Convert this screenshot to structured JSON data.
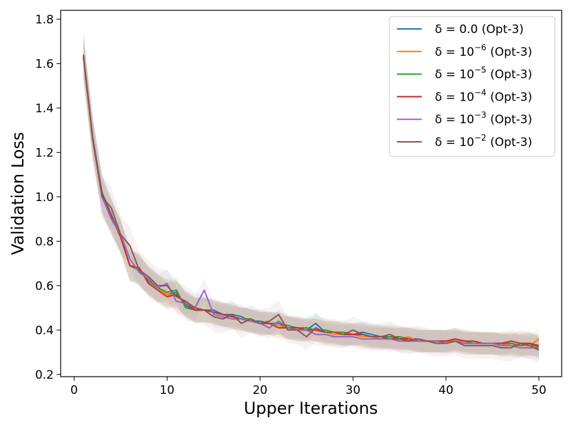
{
  "chart_data": {
    "type": "line",
    "title": "",
    "xlabel": "Upper Iterations",
    "ylabel": "Validation Loss",
    "xlim": [
      -1.45,
      52.45
    ],
    "ylim": [
      0.19,
      1.84
    ],
    "xticks": [
      0,
      10,
      20,
      30,
      40,
      50
    ],
    "yticks": [
      0.2,
      0.4,
      0.6,
      0.8,
      1.0,
      1.2,
      1.4,
      1.6,
      1.8
    ],
    "ytick_labels": [
      "0.2",
      "0.4",
      "0.6",
      "0.8",
      "1.0",
      "1.2",
      "1.4",
      "1.6",
      "1.8"
    ],
    "legend_position": "upper right",
    "x": [
      1,
      2,
      3,
      4,
      5,
      6,
      7,
      8,
      9,
      10,
      11,
      12,
      13,
      14,
      15,
      16,
      17,
      18,
      19,
      20,
      21,
      22,
      23,
      24,
      25,
      26,
      27,
      28,
      29,
      30,
      31,
      32,
      33,
      34,
      35,
      36,
      37,
      38,
      39,
      40,
      41,
      42,
      43,
      44,
      45,
      46,
      47,
      48,
      49,
      50
    ],
    "series": [
      {
        "name": "δ = 0.0 (Opt-3)",
        "label_main": "δ = 0.0 (Opt-3)",
        "color": "#1f77b4",
        "values": [
          1.64,
          1.27,
          1.02,
          0.92,
          0.82,
          0.69,
          0.67,
          0.62,
          0.59,
          0.56,
          0.57,
          0.51,
          0.49,
          0.49,
          0.49,
          0.47,
          0.47,
          0.46,
          0.44,
          0.44,
          0.43,
          0.43,
          0.41,
          0.4,
          0.4,
          0.43,
          0.39,
          0.39,
          0.38,
          0.38,
          0.39,
          0.38,
          0.37,
          0.37,
          0.36,
          0.36,
          0.36,
          0.35,
          0.35,
          0.35,
          0.35,
          0.34,
          0.34,
          0.34,
          0.34,
          0.33,
          0.34,
          0.33,
          0.33,
          0.33
        ],
        "band": 0.05
      },
      {
        "name": "δ = 10^−6 (Opt-3)",
        "label_main": "δ = 10",
        "label_exp": "−6",
        "label_tail": " (Opt-3)",
        "color": "#ff7f0e",
        "values": [
          1.63,
          1.26,
          1.01,
          0.91,
          0.82,
          0.69,
          0.68,
          0.62,
          0.59,
          0.56,
          0.56,
          0.52,
          0.49,
          0.49,
          0.48,
          0.47,
          0.46,
          0.45,
          0.44,
          0.43,
          0.43,
          0.42,
          0.41,
          0.4,
          0.4,
          0.4,
          0.39,
          0.38,
          0.38,
          0.38,
          0.37,
          0.37,
          0.36,
          0.36,
          0.36,
          0.37,
          0.35,
          0.35,
          0.35,
          0.35,
          0.35,
          0.35,
          0.34,
          0.34,
          0.34,
          0.34,
          0.33,
          0.33,
          0.33,
          0.36
        ],
        "band": 0.05
      },
      {
        "name": "δ = 10^−5 (Opt-3)",
        "label_main": "δ = 10",
        "label_exp": "−5",
        "label_tail": " (Opt-3)",
        "color": "#2ca02c",
        "values": [
          1.63,
          1.27,
          1.01,
          0.91,
          0.82,
          0.69,
          0.67,
          0.62,
          0.59,
          0.57,
          0.58,
          0.5,
          0.49,
          0.49,
          0.48,
          0.47,
          0.46,
          0.45,
          0.45,
          0.43,
          0.43,
          0.43,
          0.42,
          0.41,
          0.41,
          0.4,
          0.4,
          0.39,
          0.39,
          0.38,
          0.38,
          0.37,
          0.37,
          0.37,
          0.37,
          0.36,
          0.35,
          0.35,
          0.35,
          0.35,
          0.36,
          0.35,
          0.34,
          0.34,
          0.34,
          0.34,
          0.34,
          0.33,
          0.34,
          0.32
        ],
        "band": 0.05
      },
      {
        "name": "δ = 10^−4 (Opt-3)",
        "label_main": "δ = 10",
        "label_exp": "−4",
        "label_tail": " (Opt-3)",
        "color": "#d62728",
        "values": [
          1.63,
          1.26,
          1.01,
          0.91,
          0.82,
          0.69,
          0.68,
          0.61,
          0.58,
          0.55,
          0.56,
          0.52,
          0.49,
          0.49,
          0.48,
          0.47,
          0.46,
          0.45,
          0.44,
          0.43,
          0.43,
          0.41,
          0.41,
          0.41,
          0.4,
          0.4,
          0.39,
          0.39,
          0.38,
          0.38,
          0.38,
          0.37,
          0.37,
          0.36,
          0.36,
          0.36,
          0.35,
          0.35,
          0.35,
          0.35,
          0.36,
          0.35,
          0.35,
          0.34,
          0.34,
          0.34,
          0.35,
          0.34,
          0.34,
          0.33
        ],
        "band": 0.05
      },
      {
        "name": "δ = 10^−3 (Opt-3)",
        "label_main": "δ = 10",
        "label_exp": "−3",
        "label_tail": " (Opt-3)",
        "color": "#9467bd",
        "values": [
          1.63,
          1.27,
          1.0,
          0.9,
          0.83,
          0.72,
          0.66,
          0.63,
          0.59,
          0.61,
          0.53,
          0.52,
          0.5,
          0.58,
          0.47,
          0.46,
          0.45,
          0.45,
          0.44,
          0.43,
          0.41,
          0.44,
          0.41,
          0.4,
          0.4,
          0.38,
          0.38,
          0.37,
          0.37,
          0.37,
          0.36,
          0.36,
          0.36,
          0.36,
          0.35,
          0.35,
          0.35,
          0.35,
          0.35,
          0.34,
          0.35,
          0.34,
          0.34,
          0.34,
          0.34,
          0.33,
          0.33,
          0.32,
          0.32,
          0.32
        ],
        "band": 0.05
      },
      {
        "name": "δ = 10^−2 (Opt-3)",
        "label_main": "δ = 10",
        "label_exp": "−2",
        "label_tail": " (Opt-3)",
        "color": "#8c564b",
        "values": [
          1.64,
          1.26,
          1.0,
          0.95,
          0.83,
          0.78,
          0.67,
          0.64,
          0.6,
          0.6,
          0.55,
          0.53,
          0.5,
          0.49,
          0.46,
          0.45,
          0.47,
          0.43,
          0.45,
          0.43,
          0.44,
          0.47,
          0.4,
          0.4,
          0.37,
          0.41,
          0.39,
          0.39,
          0.38,
          0.4,
          0.38,
          0.37,
          0.37,
          0.38,
          0.36,
          0.35,
          0.36,
          0.35,
          0.34,
          0.34,
          0.35,
          0.33,
          0.33,
          0.33,
          0.33,
          0.32,
          0.32,
          0.34,
          0.33,
          0.31
        ],
        "band": 0.06
      }
    ]
  }
}
